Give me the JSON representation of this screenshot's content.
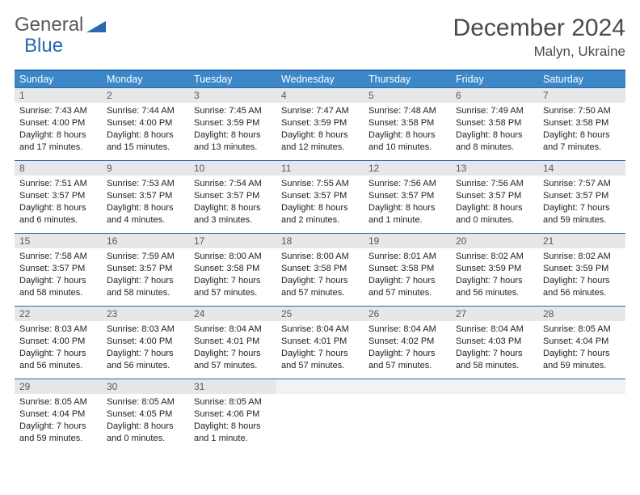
{
  "logo": {
    "word1": "General",
    "word2": "Blue"
  },
  "title": "December 2024",
  "location": "Malyn, Ukraine",
  "colors": {
    "header_bg": "#3b87c8",
    "header_border": "#2968b0",
    "daynum_bg": "#e6e7e8",
    "text": "#222222",
    "logo_gray": "#5a5a5a",
    "logo_blue": "#2968b0"
  },
  "weekdays": [
    "Sunday",
    "Monday",
    "Tuesday",
    "Wednesday",
    "Thursday",
    "Friday",
    "Saturday"
  ],
  "weeks": [
    [
      {
        "n": "1",
        "sr": "Sunrise: 7:43 AM",
        "ss": "Sunset: 4:00 PM",
        "d1": "Daylight: 8 hours",
        "d2": "and 17 minutes."
      },
      {
        "n": "2",
        "sr": "Sunrise: 7:44 AM",
        "ss": "Sunset: 4:00 PM",
        "d1": "Daylight: 8 hours",
        "d2": "and 15 minutes."
      },
      {
        "n": "3",
        "sr": "Sunrise: 7:45 AM",
        "ss": "Sunset: 3:59 PM",
        "d1": "Daylight: 8 hours",
        "d2": "and 13 minutes."
      },
      {
        "n": "4",
        "sr": "Sunrise: 7:47 AM",
        "ss": "Sunset: 3:59 PM",
        "d1": "Daylight: 8 hours",
        "d2": "and 12 minutes."
      },
      {
        "n": "5",
        "sr": "Sunrise: 7:48 AM",
        "ss": "Sunset: 3:58 PM",
        "d1": "Daylight: 8 hours",
        "d2": "and 10 minutes."
      },
      {
        "n": "6",
        "sr": "Sunrise: 7:49 AM",
        "ss": "Sunset: 3:58 PM",
        "d1": "Daylight: 8 hours",
        "d2": "and 8 minutes."
      },
      {
        "n": "7",
        "sr": "Sunrise: 7:50 AM",
        "ss": "Sunset: 3:58 PM",
        "d1": "Daylight: 8 hours",
        "d2": "and 7 minutes."
      }
    ],
    [
      {
        "n": "8",
        "sr": "Sunrise: 7:51 AM",
        "ss": "Sunset: 3:57 PM",
        "d1": "Daylight: 8 hours",
        "d2": "and 6 minutes."
      },
      {
        "n": "9",
        "sr": "Sunrise: 7:53 AM",
        "ss": "Sunset: 3:57 PM",
        "d1": "Daylight: 8 hours",
        "d2": "and 4 minutes."
      },
      {
        "n": "10",
        "sr": "Sunrise: 7:54 AM",
        "ss": "Sunset: 3:57 PM",
        "d1": "Daylight: 8 hours",
        "d2": "and 3 minutes."
      },
      {
        "n": "11",
        "sr": "Sunrise: 7:55 AM",
        "ss": "Sunset: 3:57 PM",
        "d1": "Daylight: 8 hours",
        "d2": "and 2 minutes."
      },
      {
        "n": "12",
        "sr": "Sunrise: 7:56 AM",
        "ss": "Sunset: 3:57 PM",
        "d1": "Daylight: 8 hours",
        "d2": "and 1 minute."
      },
      {
        "n": "13",
        "sr": "Sunrise: 7:56 AM",
        "ss": "Sunset: 3:57 PM",
        "d1": "Daylight: 8 hours",
        "d2": "and 0 minutes."
      },
      {
        "n": "14",
        "sr": "Sunrise: 7:57 AM",
        "ss": "Sunset: 3:57 PM",
        "d1": "Daylight: 7 hours",
        "d2": "and 59 minutes."
      }
    ],
    [
      {
        "n": "15",
        "sr": "Sunrise: 7:58 AM",
        "ss": "Sunset: 3:57 PM",
        "d1": "Daylight: 7 hours",
        "d2": "and 58 minutes."
      },
      {
        "n": "16",
        "sr": "Sunrise: 7:59 AM",
        "ss": "Sunset: 3:57 PM",
        "d1": "Daylight: 7 hours",
        "d2": "and 58 minutes."
      },
      {
        "n": "17",
        "sr": "Sunrise: 8:00 AM",
        "ss": "Sunset: 3:58 PM",
        "d1": "Daylight: 7 hours",
        "d2": "and 57 minutes."
      },
      {
        "n": "18",
        "sr": "Sunrise: 8:00 AM",
        "ss": "Sunset: 3:58 PM",
        "d1": "Daylight: 7 hours",
        "d2": "and 57 minutes."
      },
      {
        "n": "19",
        "sr": "Sunrise: 8:01 AM",
        "ss": "Sunset: 3:58 PM",
        "d1": "Daylight: 7 hours",
        "d2": "and 57 minutes."
      },
      {
        "n": "20",
        "sr": "Sunrise: 8:02 AM",
        "ss": "Sunset: 3:59 PM",
        "d1": "Daylight: 7 hours",
        "d2": "and 56 minutes."
      },
      {
        "n": "21",
        "sr": "Sunrise: 8:02 AM",
        "ss": "Sunset: 3:59 PM",
        "d1": "Daylight: 7 hours",
        "d2": "and 56 minutes."
      }
    ],
    [
      {
        "n": "22",
        "sr": "Sunrise: 8:03 AM",
        "ss": "Sunset: 4:00 PM",
        "d1": "Daylight: 7 hours",
        "d2": "and 56 minutes."
      },
      {
        "n": "23",
        "sr": "Sunrise: 8:03 AM",
        "ss": "Sunset: 4:00 PM",
        "d1": "Daylight: 7 hours",
        "d2": "and 56 minutes."
      },
      {
        "n": "24",
        "sr": "Sunrise: 8:04 AM",
        "ss": "Sunset: 4:01 PM",
        "d1": "Daylight: 7 hours",
        "d2": "and 57 minutes."
      },
      {
        "n": "25",
        "sr": "Sunrise: 8:04 AM",
        "ss": "Sunset: 4:01 PM",
        "d1": "Daylight: 7 hours",
        "d2": "and 57 minutes."
      },
      {
        "n": "26",
        "sr": "Sunrise: 8:04 AM",
        "ss": "Sunset: 4:02 PM",
        "d1": "Daylight: 7 hours",
        "d2": "and 57 minutes."
      },
      {
        "n": "27",
        "sr": "Sunrise: 8:04 AM",
        "ss": "Sunset: 4:03 PM",
        "d1": "Daylight: 7 hours",
        "d2": "and 58 minutes."
      },
      {
        "n": "28",
        "sr": "Sunrise: 8:05 AM",
        "ss": "Sunset: 4:04 PM",
        "d1": "Daylight: 7 hours",
        "d2": "and 59 minutes."
      }
    ],
    [
      {
        "n": "29",
        "sr": "Sunrise: 8:05 AM",
        "ss": "Sunset: 4:04 PM",
        "d1": "Daylight: 7 hours",
        "d2": "and 59 minutes."
      },
      {
        "n": "30",
        "sr": "Sunrise: 8:05 AM",
        "ss": "Sunset: 4:05 PM",
        "d1": "Daylight: 8 hours",
        "d2": "and 0 minutes."
      },
      {
        "n": "31",
        "sr": "Sunrise: 8:05 AM",
        "ss": "Sunset: 4:06 PM",
        "d1": "Daylight: 8 hours",
        "d2": "and 1 minute."
      },
      null,
      null,
      null,
      null
    ]
  ]
}
